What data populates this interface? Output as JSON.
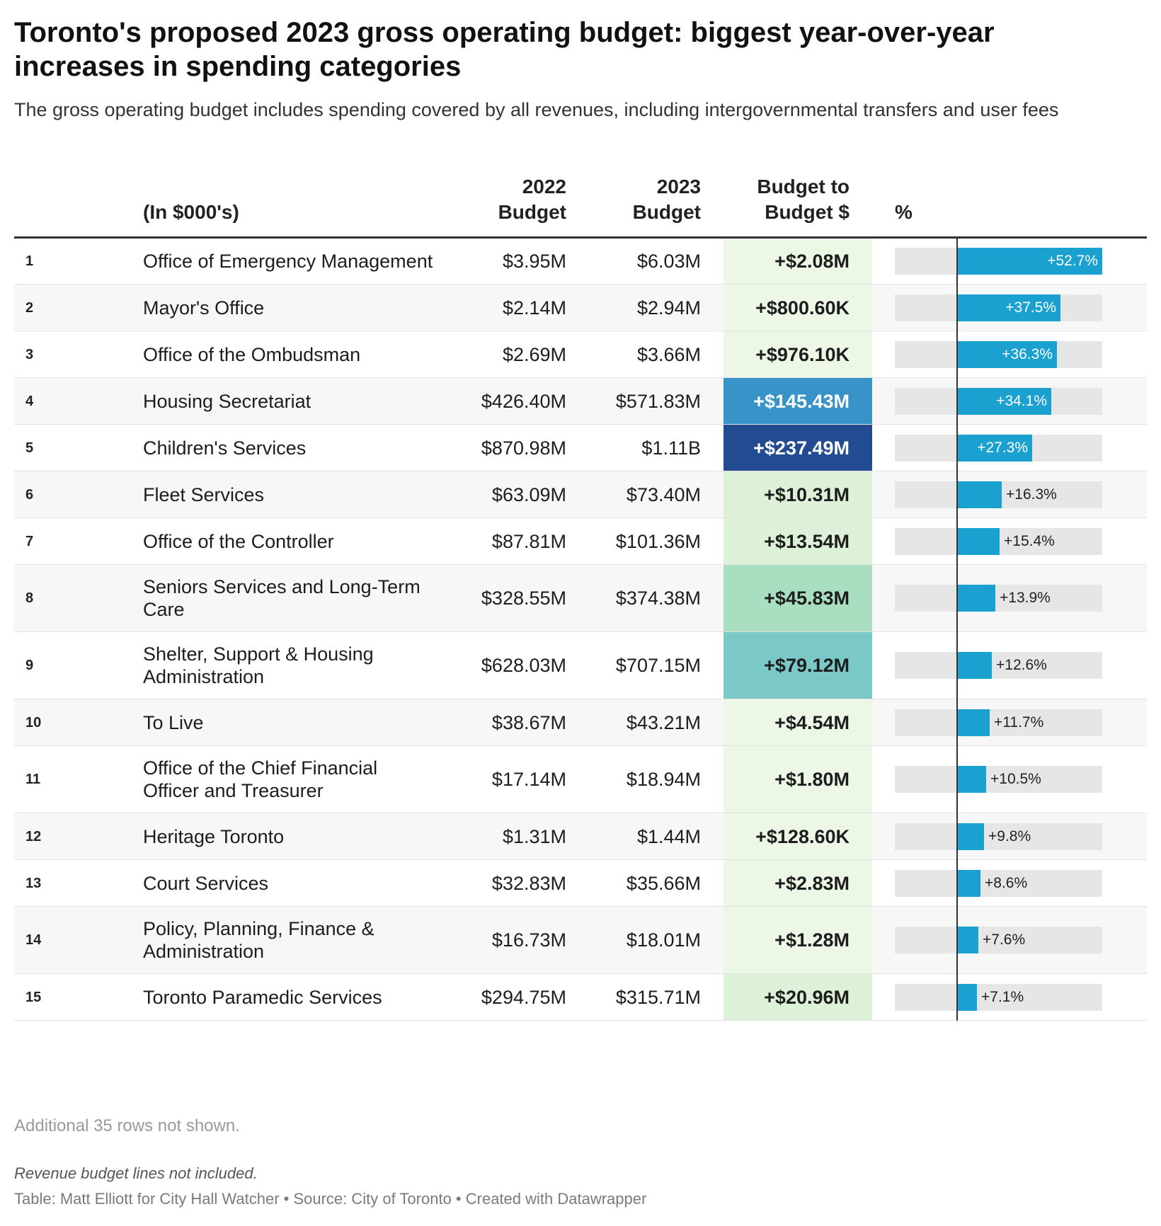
{
  "title": "Toronto's proposed 2023 gross operating budget: biggest year-over-year increases in spending categories",
  "subtitle": "The gross operating budget includes spending covered by all revenues, including intergovernmental transfers and user fees",
  "columns": {
    "name": "(In $000's)",
    "budget_2022_line1": "2022",
    "budget_2022_line2": "Budget",
    "budget_2023_line1": "2023",
    "budget_2023_line2": "Budget",
    "diff_line1": "Budget to",
    "diff_line2": "Budget $",
    "pct": "%"
  },
  "colors": {
    "bar": "#1ba1d0",
    "bar_track": "#e6e6e6",
    "heat": {
      "very_light": "#ecf7e6",
      "light": "#dcf1d7",
      "mid_green": "#a9dfc0",
      "teal": "#7ac9c6",
      "blue": "#3893c8",
      "dark_blue": "#234b91"
    }
  },
  "chart_data": {
    "type": "table",
    "unit": "(In $000's)",
    "x_max_percent": 52.7,
    "rows": [
      {
        "rank": "1",
        "name": "Office of Emergency Management",
        "budget_2022": "$3.95M",
        "budget_2023": "$6.03M",
        "diff": "+$2.08M",
        "pct_label": "+52.7%",
        "pct": 52.7,
        "heat": "very_light"
      },
      {
        "rank": "2",
        "name": "Mayor's Office",
        "budget_2022": "$2.14M",
        "budget_2023": "$2.94M",
        "diff": "+$800.60K",
        "pct_label": "+37.5%",
        "pct": 37.5,
        "heat": "very_light"
      },
      {
        "rank": "3",
        "name": "Office of the Ombudsman",
        "budget_2022": "$2.69M",
        "budget_2023": "$3.66M",
        "diff": "+$976.10K",
        "pct_label": "+36.3%",
        "pct": 36.3,
        "heat": "very_light"
      },
      {
        "rank": "4",
        "name": "Housing Secretariat",
        "budget_2022": "$426.40M",
        "budget_2023": "$571.83M",
        "diff": "+$145.43M",
        "pct_label": "+34.1%",
        "pct": 34.1,
        "heat": "blue"
      },
      {
        "rank": "5",
        "name": "Children's Services",
        "budget_2022": "$870.98M",
        "budget_2023": "$1.11B",
        "diff": "+$237.49M",
        "pct_label": "+27.3%",
        "pct": 27.3,
        "heat": "dark_blue"
      },
      {
        "rank": "6",
        "name": "Fleet Services",
        "budget_2022": "$63.09M",
        "budget_2023": "$73.40M",
        "diff": "+$10.31M",
        "pct_label": "+16.3%",
        "pct": 16.3,
        "heat": "light"
      },
      {
        "rank": "7",
        "name": "Office of the Controller",
        "budget_2022": "$87.81M",
        "budget_2023": "$101.36M",
        "diff": "+$13.54M",
        "pct_label": "+15.4%",
        "pct": 15.4,
        "heat": "light"
      },
      {
        "rank": "8",
        "name": "Seniors Services and Long-Term Care",
        "budget_2022": "$328.55M",
        "budget_2023": "$374.38M",
        "diff": "+$45.83M",
        "pct_label": "+13.9%",
        "pct": 13.9,
        "heat": "mid_green"
      },
      {
        "rank": "9",
        "name": "Shelter, Support & Housing Administration",
        "budget_2022": "$628.03M",
        "budget_2023": "$707.15M",
        "diff": "+$79.12M",
        "pct_label": "+12.6%",
        "pct": 12.6,
        "heat": "teal"
      },
      {
        "rank": "10",
        "name": "To Live",
        "budget_2022": "$38.67M",
        "budget_2023": "$43.21M",
        "diff": "+$4.54M",
        "pct_label": "+11.7%",
        "pct": 11.7,
        "heat": "very_light"
      },
      {
        "rank": "11",
        "name": "Office of the Chief Financial Officer and Treasurer",
        "budget_2022": "$17.14M",
        "budget_2023": "$18.94M",
        "diff": "+$1.80M",
        "pct_label": "+10.5%",
        "pct": 10.5,
        "heat": "very_light"
      },
      {
        "rank": "12",
        "name": "Heritage Toronto",
        "budget_2022": "$1.31M",
        "budget_2023": "$1.44M",
        "diff": "+$128.60K",
        "pct_label": "+9.8%",
        "pct": 9.8,
        "heat": "very_light"
      },
      {
        "rank": "13",
        "name": "Court Services",
        "budget_2022": "$32.83M",
        "budget_2023": "$35.66M",
        "diff": "+$2.83M",
        "pct_label": "+8.6%",
        "pct": 8.6,
        "heat": "very_light"
      },
      {
        "rank": "14",
        "name": "Policy, Planning, Finance & Administration",
        "budget_2022": "$16.73M",
        "budget_2023": "$18.01M",
        "diff": "+$1.28M",
        "pct_label": "+7.6%",
        "pct": 7.6,
        "heat": "very_light"
      },
      {
        "rank": "15",
        "name": "Toronto Paramedic Services",
        "budget_2022": "$294.75M",
        "budget_2023": "$315.71M",
        "diff": "+$20.96M",
        "pct_label": "+7.1%",
        "pct": 7.1,
        "heat": "light"
      }
    ]
  },
  "notes": {
    "rows_hidden": "Additional 35 rows not shown.",
    "footnote": "Revenue budget lines not included.",
    "source": "Table: Matt Elliott for City Hall Watcher • Source: City of Toronto • Created with Datawrapper"
  }
}
